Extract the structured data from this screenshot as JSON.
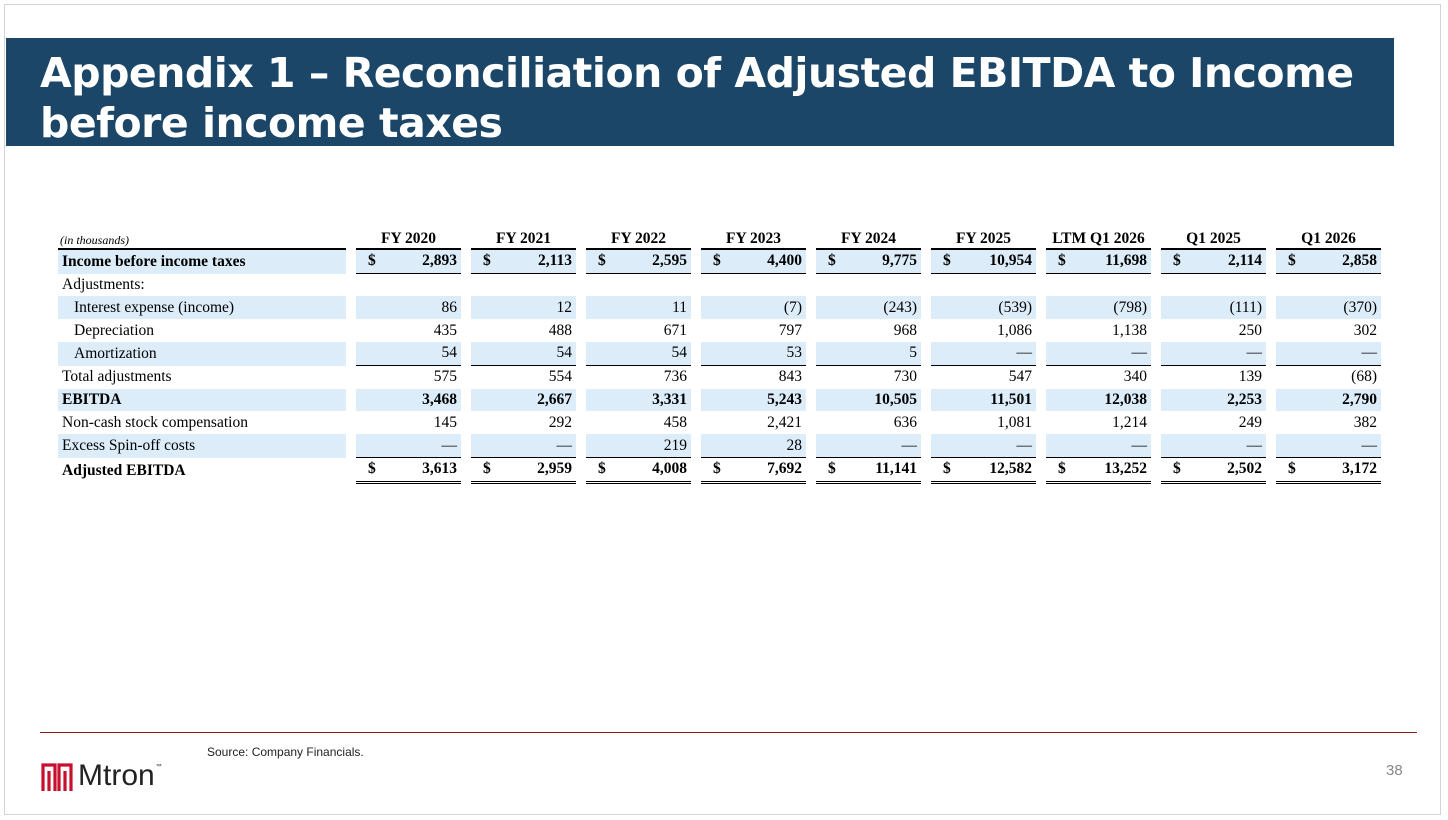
{
  "slide": {
    "title": "Appendix 1 – Reconciliation of Adjusted EBITDA to Income before income taxes",
    "source": "Source: Company Financials.",
    "page_number": "38",
    "logo": {
      "name": "Mtron",
      "trademark": "™",
      "icon": "mtron-logo-icon",
      "color": "#c8102e"
    },
    "colors": {
      "title_bar": "#1b4668",
      "row_shade": "#dcedf9",
      "footer_rule": "#8b1a1a"
    }
  },
  "table": {
    "units_label": "(in thousands)",
    "columns": [
      "FY 2020",
      "FY 2021",
      "FY 2022",
      "FY 2023",
      "FY 2024",
      "FY 2025",
      "LTM Q1 2026",
      "Q1 2025",
      "Q1 2026"
    ],
    "rows": [
      {
        "label": "Income before income taxes",
        "dollar": "$",
        "values": [
          "2,893",
          "2,113",
          "2,595",
          "4,400",
          "9,775",
          "10,954",
          "11,698",
          "2,114",
          "2,858"
        ]
      },
      {
        "label": "Adjustments:",
        "dollar": "",
        "values": [
          "",
          "",
          "",
          "",
          "",
          "",
          "",
          "",
          ""
        ]
      },
      {
        "label": "Interest expense (income)",
        "dollar": "",
        "values": [
          "86",
          "12",
          "11",
          "(7)",
          "(243)",
          "(539)",
          "(798)",
          "(111)",
          "(370)"
        ]
      },
      {
        "label": "Depreciation",
        "dollar": "",
        "values": [
          "435",
          "488",
          "671",
          "797",
          "968",
          "1,086",
          "1,138",
          "250",
          "302"
        ]
      },
      {
        "label": "Amortization",
        "dollar": "",
        "values": [
          "54",
          "54",
          "54",
          "53",
          "5",
          "—",
          "—",
          "—",
          "—"
        ]
      },
      {
        "label": "Total adjustments",
        "dollar": "",
        "values": [
          "575",
          "554",
          "736",
          "843",
          "730",
          "547",
          "340",
          "139",
          "(68)"
        ]
      },
      {
        "label": "EBITDA",
        "dollar": "",
        "values": [
          "3,468",
          "2,667",
          "3,331",
          "5,243",
          "10,505",
          "11,501",
          "12,038",
          "2,253",
          "2,790"
        ]
      },
      {
        "label": "Non-cash stock compensation",
        "dollar": "",
        "values": [
          "145",
          "292",
          "458",
          "2,421",
          "636",
          "1,081",
          "1,214",
          "249",
          "382"
        ]
      },
      {
        "label": "Excess Spin-off costs",
        "dollar": "",
        "values": [
          "—",
          "—",
          "219",
          "28",
          "—",
          "—",
          "—",
          "—",
          "—"
        ]
      },
      {
        "label": "Adjusted EBITDA",
        "dollar": "$",
        "values": [
          "3,613",
          "2,959",
          "4,008",
          "7,692",
          "11,141",
          "12,582",
          "13,252",
          "2,502",
          "3,172"
        ]
      }
    ]
  }
}
